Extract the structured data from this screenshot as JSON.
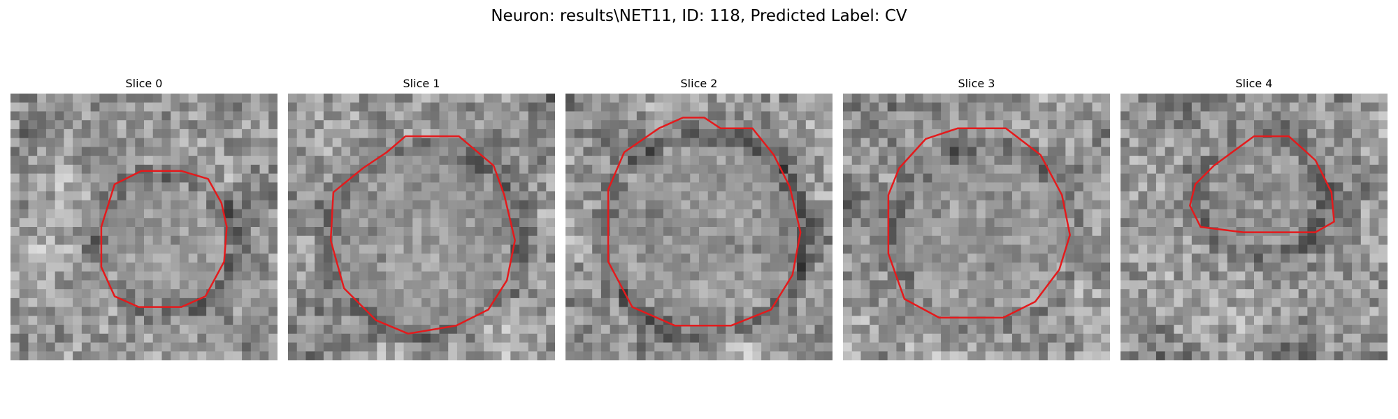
{
  "figure": {
    "title": "Neuron: results\\NET11, ID: 118, Predicted Label: CV"
  },
  "panels": [
    {
      "title": "Slice 0"
    },
    {
      "title": "Slice 1"
    },
    {
      "title": "Slice 2"
    },
    {
      "title": "Slice 3"
    },
    {
      "title": "Slice 4"
    }
  ],
  "colors": {
    "contour": "#e41a1c",
    "background": "#ffffff"
  }
}
